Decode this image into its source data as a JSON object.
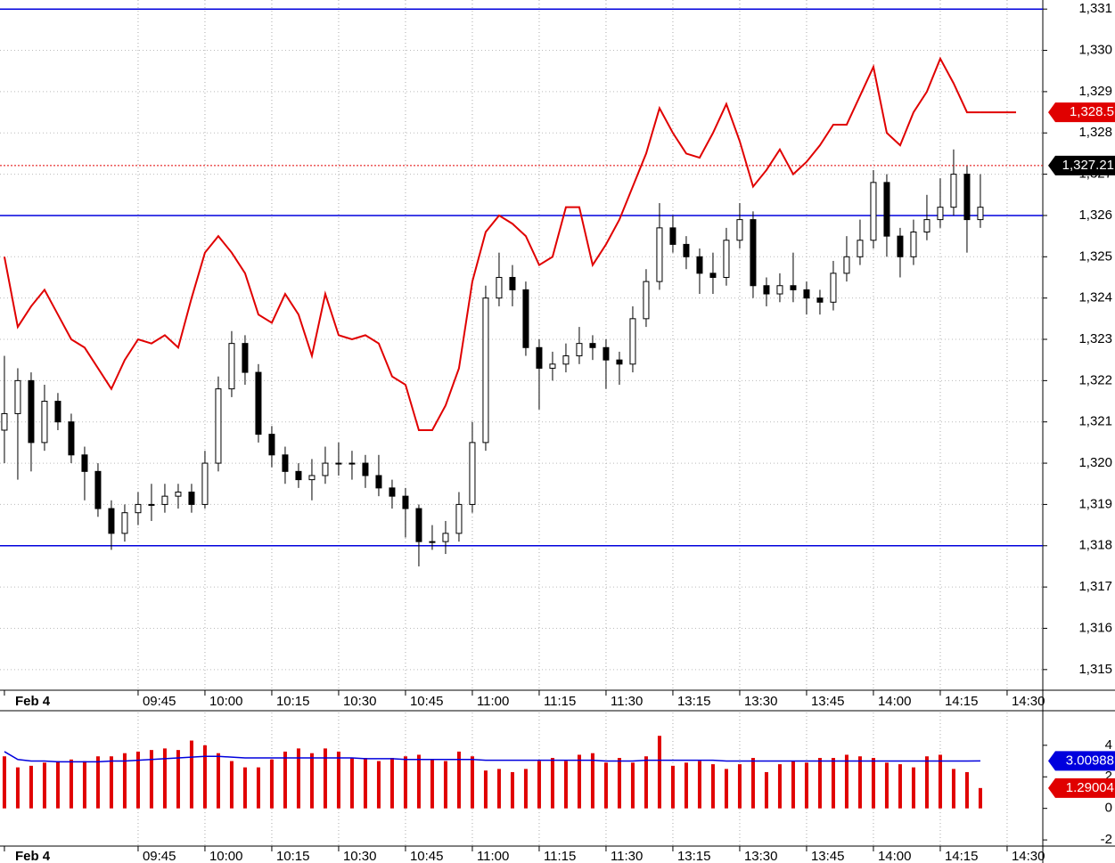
{
  "chart_data": [
    {
      "type": "candlestick",
      "xticks": [
        {
          "value": 0,
          "label": "Feb 4"
        },
        {
          "value": 10,
          "label": "09:45"
        },
        {
          "value": 15,
          "label": "10:00"
        },
        {
          "value": 20,
          "label": "10:15"
        },
        {
          "value": 25,
          "label": "10:30"
        },
        {
          "value": 30,
          "label": "10:45"
        },
        {
          "value": 35,
          "label": "11:00"
        },
        {
          "value": 40,
          "label": "11:15"
        },
        {
          "value": 45,
          "label": "11:30"
        },
        {
          "value": 50,
          "label": "13:15"
        },
        {
          "value": 55,
          "label": "13:30"
        },
        {
          "value": 60,
          "label": "13:45"
        },
        {
          "value": 65,
          "label": "14:00"
        },
        {
          "value": 70,
          "label": "14:15"
        },
        {
          "value": 75,
          "label": "14:30"
        }
      ],
      "xlim": [
        -0.33,
        77.67
      ],
      "ylim": [
        1314.5,
        1331.22
      ],
      "yticks": [
        {
          "value": 1315,
          "label": "1,315"
        },
        {
          "value": 1316,
          "label": "1,316"
        },
        {
          "value": 1317,
          "label": "1,317"
        },
        {
          "value": 1318,
          "label": "1,318"
        },
        {
          "value": 1319,
          "label": "1,319"
        },
        {
          "value": 1320,
          "label": "1,320"
        },
        {
          "value": 1321,
          "label": "1,321"
        },
        {
          "value": 1322,
          "label": "1,322"
        },
        {
          "value": 1323,
          "label": "1,323"
        },
        {
          "value": 1324,
          "label": "1,324"
        },
        {
          "value": 1325,
          "label": "1,325"
        },
        {
          "value": 1326,
          "label": "1,326"
        },
        {
          "value": 1327,
          "label": "1,327"
        },
        {
          "value": 1328,
          "label": "1,328"
        },
        {
          "value": 1329,
          "label": "1,329"
        },
        {
          "value": 1330,
          "label": "1,330"
        },
        {
          "value": 1331,
          "label": "1,331"
        }
      ],
      "grid": true,
      "levels": {
        "color": "#0000dd",
        "values": [
          1331,
          1326,
          1318
        ]
      },
      "open": [
        1320.8,
        1321.2,
        1322.0,
        1320.5,
        1321.5,
        1321.0,
        1320.2,
        1319.8,
        1318.9,
        1318.3,
        1318.8,
        1319.0,
        1319.0,
        1319.2,
        1319.3,
        1319.0,
        1320.0,
        1321.8,
        1322.9,
        1322.2,
        1320.7,
        1320.2,
        1319.8,
        1319.6,
        1319.7,
        1320.0,
        1320.0,
        1320.0,
        1319.7,
        1319.4,
        1319.2,
        1318.9,
        1318.1,
        1318.1,
        1318.3,
        1319.0,
        1320.5,
        1324.0,
        1324.5,
        1324.2,
        1322.8,
        1322.3,
        1322.4,
        1322.6,
        1322.9,
        1322.8,
        1322.5,
        1322.4,
        1323.5,
        1324.4,
        1325.7,
        1325.3,
        1325.0,
        1324.6,
        1324.5,
        1325.4,
        1325.9,
        1324.3,
        1324.1,
        1324.3,
        1324.2,
        1324.0,
        1323.9,
        1324.6,
        1325.0,
        1325.4,
        1326.8,
        1325.5,
        1325.0,
        1325.6,
        1325.9,
        1326.2,
        1327.0,
        1325.9
      ],
      "high": [
        1322.6,
        1322.3,
        1322.2,
        1321.9,
        1321.7,
        1321.2,
        1320.4,
        1320.0,
        1319.1,
        1319.0,
        1319.3,
        1319.5,
        1319.5,
        1319.5,
        1319.5,
        1320.3,
        1322.1,
        1323.2,
        1323.1,
        1322.4,
        1320.9,
        1320.4,
        1320.0,
        1320.1,
        1320.4,
        1320.5,
        1320.3,
        1320.2,
        1320.2,
        1319.6,
        1319.4,
        1319.0,
        1318.5,
        1318.6,
        1319.3,
        1321.0,
        1324.3,
        1325.1,
        1324.8,
        1324.4,
        1323.0,
        1322.7,
        1322.9,
        1323.3,
        1323.1,
        1323.0,
        1322.7,
        1323.8,
        1324.7,
        1326.3,
        1326.0,
        1325.5,
        1325.2,
        1325.1,
        1325.7,
        1326.3,
        1326.1,
        1324.5,
        1324.6,
        1325.1,
        1324.4,
        1324.2,
        1324.9,
        1325.5,
        1325.9,
        1327.1,
        1327.0,
        1325.7,
        1325.9,
        1326.5,
        1326.9,
        1327.6,
        1327.2,
        1327.0
      ],
      "low": [
        1320.0,
        1319.6,
        1319.8,
        1320.3,
        1320.8,
        1320.0,
        1319.1,
        1318.7,
        1317.9,
        1318.1,
        1318.5,
        1318.6,
        1318.8,
        1318.9,
        1318.8,
        1318.9,
        1319.8,
        1321.6,
        1321.9,
        1320.5,
        1319.9,
        1319.5,
        1319.4,
        1319.1,
        1319.5,
        1319.7,
        1319.6,
        1319.4,
        1319.2,
        1318.9,
        1318.2,
        1317.5,
        1317.9,
        1317.8,
        1318.1,
        1318.8,
        1320.3,
        1323.8,
        1323.8,
        1322.6,
        1321.3,
        1322.0,
        1322.2,
        1322.4,
        1322.5,
        1321.8,
        1321.9,
        1322.2,
        1323.3,
        1324.2,
        1325.1,
        1324.7,
        1324.1,
        1324.1,
        1324.3,
        1325.2,
        1324.0,
        1323.8,
        1323.9,
        1323.9,
        1323.6,
        1323.6,
        1323.7,
        1324.4,
        1324.8,
        1325.2,
        1325.0,
        1324.5,
        1324.8,
        1325.4,
        1325.7,
        1326.0,
        1325.1,
        1325.7
      ],
      "close": [
        1321.2,
        1322.0,
        1320.5,
        1321.5,
        1321.0,
        1320.2,
        1319.8,
        1318.9,
        1318.3,
        1318.8,
        1319.0,
        1319.0,
        1319.2,
        1319.3,
        1319.0,
        1320.0,
        1321.8,
        1322.9,
        1322.2,
        1320.7,
        1320.2,
        1319.8,
        1319.6,
        1319.7,
        1320.0,
        1320.0,
        1320.0,
        1319.7,
        1319.4,
        1319.2,
        1318.9,
        1318.1,
        1318.1,
        1318.3,
        1319.0,
        1320.5,
        1324.0,
        1324.5,
        1324.2,
        1322.8,
        1322.3,
        1322.4,
        1322.6,
        1322.9,
        1322.8,
        1322.5,
        1322.4,
        1323.5,
        1324.4,
        1325.7,
        1325.3,
        1325.0,
        1324.6,
        1324.5,
        1325.4,
        1325.9,
        1324.3,
        1324.1,
        1324.3,
        1324.2,
        1324.0,
        1323.9,
        1324.6,
        1325.0,
        1325.4,
        1326.8,
        1325.5,
        1325.0,
        1325.6,
        1325.9,
        1326.2,
        1327.0,
        1325.9,
        1326.2
      ],
      "line": {
        "color": "#e00000",
        "values": [
          1325.0,
          1323.3,
          1323.8,
          1324.2,
          1323.6,
          1323.0,
          1322.8,
          1322.3,
          1321.8,
          1322.5,
          1323.0,
          1322.9,
          1323.1,
          1322.8,
          1324.0,
          1325.1,
          1325.5,
          1325.1,
          1324.6,
          1323.6,
          1323.4,
          1324.1,
          1323.6,
          1322.6,
          1324.1,
          1323.1,
          1323.0,
          1323.1,
          1322.9,
          1322.1,
          1321.9,
          1320.8,
          1320.8,
          1321.4,
          1322.3,
          1324.4,
          1325.6,
          1326.0,
          1325.8,
          1325.5,
          1324.8,
          1325.0,
          1326.2,
          1326.2,
          1324.8,
          1325.3,
          1325.9,
          1326.7,
          1327.5,
          1328.6,
          1328.0,
          1327.5,
          1327.4,
          1328.0,
          1328.7,
          1327.8,
          1326.7,
          1327.1,
          1327.6,
          1327.0,
          1327.3,
          1327.7,
          1328.2,
          1328.2,
          1328.9,
          1329.6,
          1328.0,
          1327.7,
          1328.5,
          1329.0,
          1329.8,
          1329.2,
          1328.5,
          1328.5
        ]
      },
      "markers": [
        {
          "value": 1328.5,
          "label": "1,328.5",
          "color": "#e00000"
        },
        {
          "value": 1327.21,
          "label": "1,327.21",
          "color": "#000000"
        }
      ]
    },
    {
      "type": "bar",
      "xlim": [
        -0.33,
        77.67
      ],
      "ylim": [
        -2.39,
        6.08
      ],
      "yticks": [
        -2,
        0,
        2,
        4
      ],
      "color": "#e00000",
      "values": [
        3.3,
        2.6,
        2.7,
        2.9,
        3.0,
        3.1,
        3.0,
        3.3,
        3.3,
        3.5,
        3.6,
        3.7,
        3.8,
        3.7,
        4.3,
        4.0,
        3.5,
        3.0,
        2.6,
        2.6,
        3.1,
        3.6,
        3.8,
        3.5,
        3.8,
        3.6,
        3.2,
        3.2,
        3.0,
        3.2,
        3.3,
        3.4,
        3.1,
        3.0,
        3.6,
        3.3,
        2.4,
        2.5,
        2.3,
        2.5,
        3.0,
        3.2,
        3.0,
        3.4,
        3.5,
        2.9,
        3.2,
        2.9,
        3.3,
        4.6,
        2.7,
        2.9,
        3.0,
        2.8,
        2.5,
        2.8,
        3.2,
        2.3,
        2.8,
        3.0,
        2.9,
        3.2,
        3.2,
        3.4,
        3.3,
        3.2,
        2.9,
        2.8,
        2.6,
        3.3,
        3.4,
        2.5,
        2.3,
        1.29004
      ],
      "ma": {
        "color": "#0000dd",
        "values": [
          3.6,
          3.1,
          3.0,
          3.0,
          2.95,
          2.95,
          2.95,
          2.95,
          3.0,
          3.0,
          3.05,
          3.1,
          3.15,
          3.2,
          3.25,
          3.3,
          3.3,
          3.25,
          3.2,
          3.2,
          3.2,
          3.2,
          3.2,
          3.2,
          3.2,
          3.2,
          3.2,
          3.15,
          3.15,
          3.15,
          3.1,
          3.1,
          3.1,
          3.1,
          3.1,
          3.1,
          3.05,
          3.05,
          3.05,
          3.05,
          3.05,
          3.05,
          3.05,
          3.05,
          3.05,
          3.0,
          3.0,
          3.0,
          3.05,
          3.05,
          3.05,
          3.05,
          3.05,
          3.05,
          3.0,
          3.0,
          3.0,
          3.0,
          3.0,
          3.0,
          3.0,
          3.0,
          3.0,
          3.0,
          3.0,
          3.0,
          3.0,
          3.0,
          3.0,
          3.0,
          3.0,
          3.0,
          3.0,
          3.00988
        ]
      },
      "markers": [
        {
          "value": 3.00988,
          "color": "#0000dd"
        },
        {
          "value": 1.29004,
          "color": "#e00000"
        }
      ]
    }
  ]
}
